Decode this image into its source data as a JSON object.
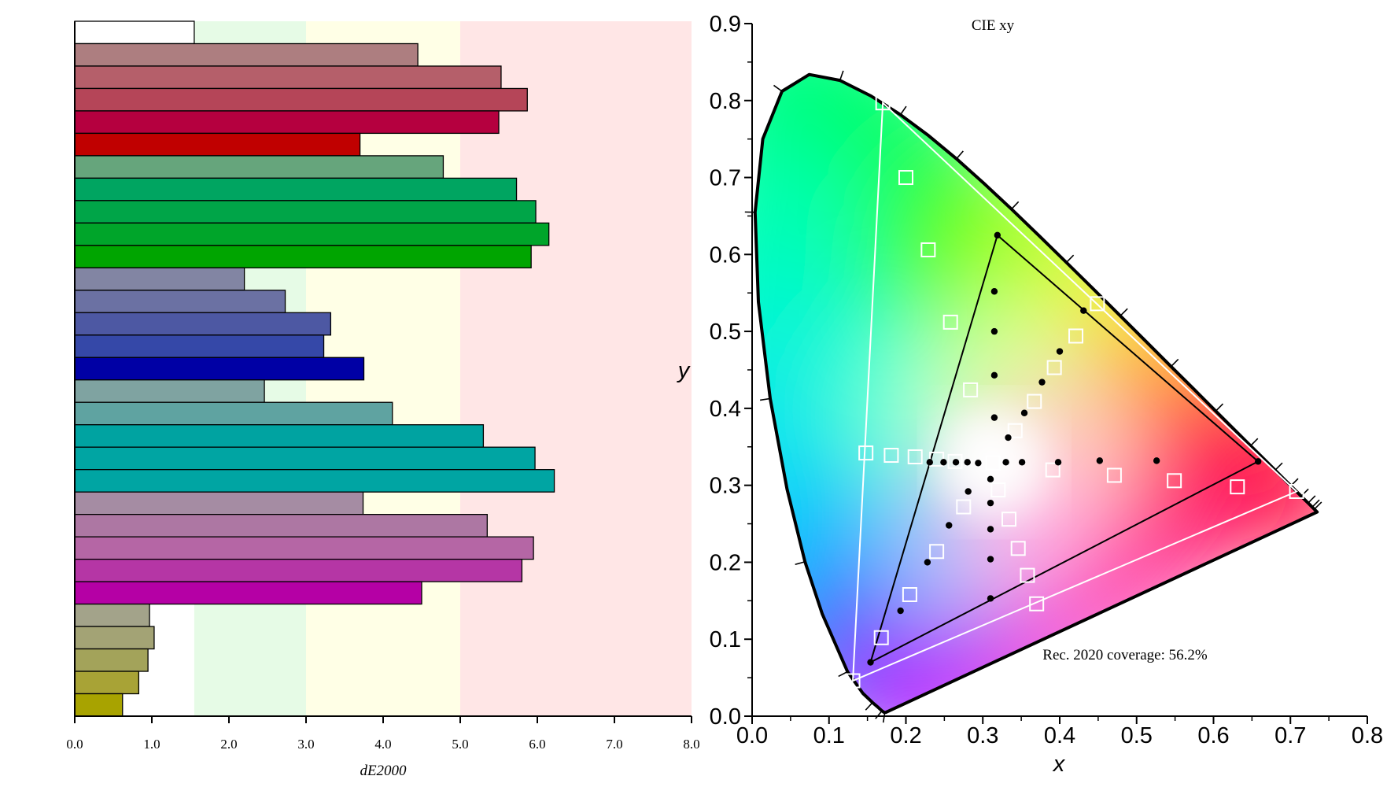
{
  "chart_data": [
    {
      "type": "bar",
      "orientation": "horizontal",
      "xlabel": "dE2000",
      "xlim": [
        0,
        8
      ],
      "xticks": [
        "0.0",
        "1.0",
        "2.0",
        "3.0",
        "4.0",
        "5.0",
        "6.0",
        "7.0",
        "8.0"
      ],
      "grid": false,
      "background_bands": [
        {
          "from": 0,
          "to": 1.55,
          "color": "#ffffff"
        },
        {
          "from": 1.55,
          "to": 3,
          "color": "#e6fbe6"
        },
        {
          "from": 3,
          "to": 5,
          "color": "#ffffe6"
        },
        {
          "from": 5,
          "to": 8,
          "color": "#ffe6e6"
        }
      ],
      "bars": [
        {
          "value": 1.55,
          "color": "#ffffff"
        },
        {
          "value": 4.45,
          "color": "#ad7e80"
        },
        {
          "value": 5.53,
          "color": "#b55f6a"
        },
        {
          "value": 5.87,
          "color": "#b54558"
        },
        {
          "value": 5.5,
          "color": "#b5003f"
        },
        {
          "value": 3.7,
          "color": "#c00000"
        },
        {
          "value": 4.78,
          "color": "#66a57c"
        },
        {
          "value": 5.73,
          "color": "#00a561"
        },
        {
          "value": 5.98,
          "color": "#00a548"
        },
        {
          "value": 6.15,
          "color": "#00a52a"
        },
        {
          "value": 5.92,
          "color": "#00a500"
        },
        {
          "value": 2.2,
          "color": "#8285a3"
        },
        {
          "value": 2.73,
          "color": "#6b71a3"
        },
        {
          "value": 3.32,
          "color": "#4d58a3"
        },
        {
          "value": 3.23,
          "color": "#3548a8"
        },
        {
          "value": 3.75,
          "color": "#0000a5"
        },
        {
          "value": 2.46,
          "color": "#7fa3a1"
        },
        {
          "value": 4.12,
          "color": "#5fa3a1"
        },
        {
          "value": 5.3,
          "color": "#00a3a1"
        },
        {
          "value": 5.97,
          "color": "#00a5a3"
        },
        {
          "value": 6.22,
          "color": "#00a5a3"
        },
        {
          "value": 3.74,
          "color": "#a58ca3"
        },
        {
          "value": 5.35,
          "color": "#ad77a3"
        },
        {
          "value": 5.95,
          "color": "#b566a5"
        },
        {
          "value": 5.8,
          "color": "#b536a5"
        },
        {
          "value": 4.5,
          "color": "#b500a5"
        },
        {
          "value": 0.97,
          "color": "#a3a38a"
        },
        {
          "value": 1.03,
          "color": "#a3a375"
        },
        {
          "value": 0.95,
          "color": "#a3a35a"
        },
        {
          "value": 0.83,
          "color": "#a8a336"
        },
        {
          "value": 0.62,
          "color": "#a8a300"
        }
      ]
    },
    {
      "type": "scatter",
      "title": "CIE xy",
      "xlabel": "x",
      "ylabel": "y",
      "xlim": [
        0,
        0.8
      ],
      "ylim": [
        0,
        0.9
      ],
      "xticks": [
        "0.0",
        "0.1",
        "0.2",
        "0.3",
        "0.4",
        "0.5",
        "0.6",
        "0.7",
        "0.8"
      ],
      "yticks": [
        "0.0",
        "0.1",
        "0.2",
        "0.3",
        "0.4",
        "0.5",
        "0.6",
        "0.7",
        "0.8",
        "0.9"
      ],
      "annotation": "Rec. 2020 coverage: 56.2%",
      "locus": [
        [
          0.1741,
          0.005
        ],
        [
          0.1738,
          0.0049
        ],
        [
          0.1733,
          0.0048
        ],
        [
          0.1726,
          0.0048
        ],
        [
          0.1714,
          0.0051
        ],
        [
          0.1689,
          0.0069
        ],
        [
          0.1644,
          0.0109
        ],
        [
          0.1566,
          0.0177
        ],
        [
          0.144,
          0.0297
        ],
        [
          0.1241,
          0.0578
        ],
        [
          0.0913,
          0.1327
        ],
        [
          0.0687,
          0.2007
        ],
        [
          0.0454,
          0.295
        ],
        [
          0.0235,
          0.4127
        ],
        [
          0.0082,
          0.5384
        ],
        [
          0.0039,
          0.6548
        ],
        [
          0.0139,
          0.7502
        ],
        [
          0.0389,
          0.812
        ],
        [
          0.0743,
          0.8338
        ],
        [
          0.1142,
          0.8262
        ],
        [
          0.1547,
          0.8059
        ],
        [
          0.1929,
          0.7816
        ],
        [
          0.2296,
          0.7543
        ],
        [
          0.2658,
          0.7243
        ],
        [
          0.3016,
          0.6923
        ],
        [
          0.3373,
          0.6589
        ],
        [
          0.3731,
          0.6245
        ],
        [
          0.4087,
          0.5896
        ],
        [
          0.4441,
          0.5547
        ],
        [
          0.4788,
          0.5202
        ],
        [
          0.5125,
          0.4866
        ],
        [
          0.5448,
          0.4544
        ],
        [
          0.5752,
          0.4242
        ],
        [
          0.6029,
          0.3965
        ],
        [
          0.627,
          0.3725
        ],
        [
          0.6482,
          0.3514
        ],
        [
          0.6658,
          0.334
        ],
        [
          0.6801,
          0.3197
        ],
        [
          0.6915,
          0.3083
        ],
        [
          0.7006,
          0.2993
        ],
        [
          0.7079,
          0.292
        ],
        [
          0.714,
          0.2859
        ],
        [
          0.719,
          0.2809
        ],
        [
          0.723,
          0.277
        ],
        [
          0.726,
          0.274
        ],
        [
          0.7283,
          0.2717
        ],
        [
          0.73,
          0.27
        ],
        [
          0.7311,
          0.2689
        ],
        [
          0.732,
          0.268
        ],
        [
          0.7327,
          0.2673
        ],
        [
          0.7334,
          0.2666
        ],
        [
          0.734,
          0.266
        ],
        [
          0.7344,
          0.2656
        ],
        [
          0.7346,
          0.2654
        ],
        [
          0.7347,
          0.2653
        ]
      ],
      "reference_gamut_rec2020": [
        [
          0.708,
          0.292
        ],
        [
          0.17,
          0.797
        ],
        [
          0.131,
          0.046
        ]
      ],
      "measured_gamut": [
        [
          0.658,
          0.331
        ],
        [
          0.319,
          0.625
        ],
        [
          0.154,
          0.07
        ]
      ],
      "target_points_squares": [
        [
          0.17,
          0.797
        ],
        [
          0.2,
          0.7
        ],
        [
          0.229,
          0.606
        ],
        [
          0.258,
          0.512
        ],
        [
          0.284,
          0.424
        ],
        [
          0.148,
          0.342
        ],
        [
          0.181,
          0.339
        ],
        [
          0.212,
          0.337
        ],
        [
          0.24,
          0.334
        ],
        [
          0.264,
          0.331
        ],
        [
          0.313,
          0.329
        ],
        [
          0.449,
          0.536
        ],
        [
          0.421,
          0.494
        ],
        [
          0.393,
          0.453
        ],
        [
          0.367,
          0.409
        ],
        [
          0.342,
          0.371
        ],
        [
          0.708,
          0.292
        ],
        [
          0.631,
          0.298
        ],
        [
          0.549,
          0.306
        ],
        [
          0.471,
          0.313
        ],
        [
          0.391,
          0.32
        ],
        [
          0.131,
          0.046
        ],
        [
          0.168,
          0.102
        ],
        [
          0.205,
          0.158
        ],
        [
          0.24,
          0.214
        ],
        [
          0.275,
          0.272
        ],
        [
          0.32,
          0.294
        ],
        [
          0.37,
          0.146
        ],
        [
          0.358,
          0.183
        ],
        [
          0.346,
          0.218
        ],
        [
          0.334,
          0.256
        ]
      ],
      "measured_points_dots": [
        [
          0.319,
          0.625
        ],
        [
          0.315,
          0.552
        ],
        [
          0.315,
          0.5
        ],
        [
          0.315,
          0.443
        ],
        [
          0.315,
          0.388
        ],
        [
          0.33,
          0.33
        ],
        [
          0.231,
          0.33
        ],
        [
          0.249,
          0.33
        ],
        [
          0.265,
          0.33
        ],
        [
          0.28,
          0.33
        ],
        [
          0.294,
          0.329
        ],
        [
          0.431,
          0.527
        ],
        [
          0.4,
          0.474
        ],
        [
          0.377,
          0.434
        ],
        [
          0.354,
          0.394
        ],
        [
          0.333,
          0.362
        ],
        [
          0.658,
          0.331
        ],
        [
          0.526,
          0.332
        ],
        [
          0.452,
          0.332
        ],
        [
          0.398,
          0.33
        ],
        [
          0.351,
          0.33
        ],
        [
          0.154,
          0.07
        ],
        [
          0.193,
          0.137
        ],
        [
          0.228,
          0.2
        ],
        [
          0.256,
          0.248
        ],
        [
          0.281,
          0.292
        ],
        [
          0.31,
          0.308
        ],
        [
          0.31,
          0.153
        ],
        [
          0.31,
          0.204
        ],
        [
          0.31,
          0.243
        ],
        [
          0.31,
          0.277
        ]
      ]
    }
  ]
}
